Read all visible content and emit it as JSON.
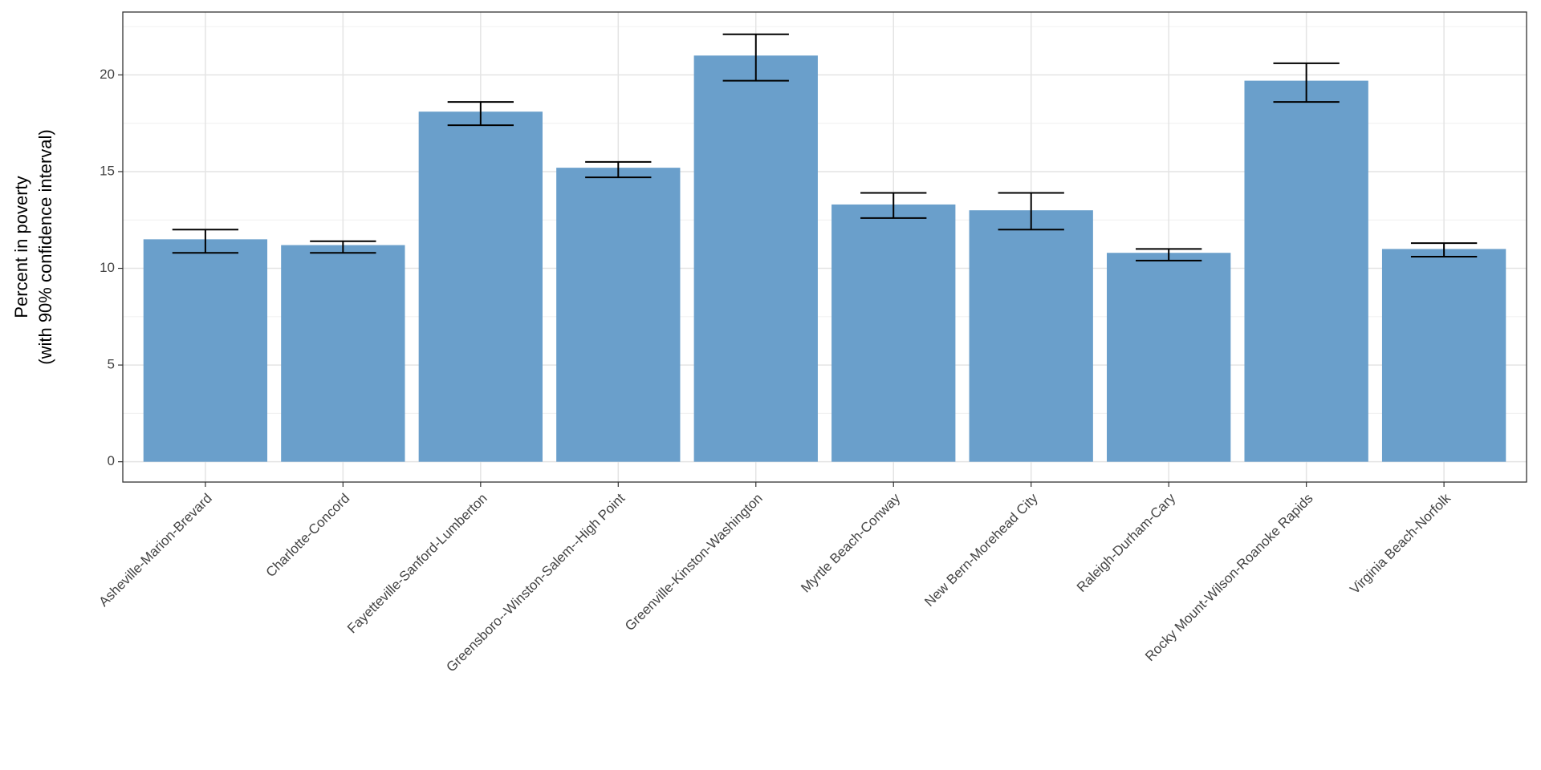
{
  "chart_data": {
    "type": "bar",
    "y_label": [
      "Percent in poverty",
      "(with 90% confidence interval)"
    ],
    "categories": [
      "Asheville-Marion-Brevard",
      "Charlotte-Concord",
      "Fayetteville-Sanford-Lumberton",
      "Greensboro--Winston-Salem--High Point",
      "Greenville-Kinston-Washington",
      "Myrtle Beach-Conway",
      "New Bern-Morehead City",
      "Raleigh-Durham-Cary",
      "Rocky Mount-Wilson-Roanoke Rapids",
      "Virginia Beach-Norfolk"
    ],
    "values": [
      11.5,
      11.2,
      18.1,
      15.2,
      21.0,
      13.3,
      13.0,
      10.8,
      19.7,
      11.0
    ],
    "ci_low": [
      10.8,
      10.8,
      17.4,
      14.7,
      19.7,
      12.6,
      12.0,
      10.4,
      18.6,
      10.6
    ],
    "ci_high": [
      12.0,
      11.4,
      18.6,
      15.5,
      22.1,
      13.9,
      13.9,
      11.0,
      20.6,
      11.3
    ],
    "color": "#6a9fcb",
    "ylim": [
      -1.05,
      23.25
    ],
    "yticks": [
      0,
      5,
      10,
      15,
      20
    ],
    "minor_yticks": [
      2.5,
      7.5,
      12.5,
      17.5,
      22.5
    ],
    "grid": true
  }
}
